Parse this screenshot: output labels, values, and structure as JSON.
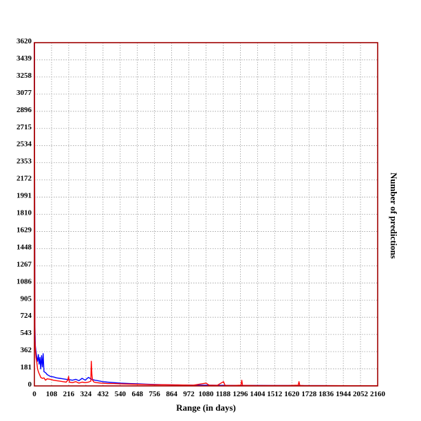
{
  "chart_data": {
    "type": "line",
    "title": "",
    "xlabel": "Range (in days)",
    "ylabel": "Number of predictions",
    "xlim": [
      0,
      2160
    ],
    "ylim": [
      0,
      3620
    ],
    "x_ticks": [
      0,
      108,
      216,
      324,
      432,
      540,
      648,
      756,
      864,
      972,
      1080,
      1188,
      1296,
      1404,
      1512,
      1620,
      1728,
      1836,
      1944,
      2052,
      2160
    ],
    "y_ticks": [
      0,
      181,
      362,
      543,
      724,
      905,
      1086,
      1267,
      1448,
      1629,
      1810,
      1991,
      2172,
      2353,
      2534,
      2715,
      2896,
      3077,
      3258,
      3439,
      3620
    ],
    "grid": true,
    "colors": {
      "frame": "#a00000",
      "grid": "#9a9a9a"
    },
    "series": [
      {
        "color": "#0000ff",
        "x": [
          0,
          3,
          6,
          10,
          15,
          20,
          25,
          30,
          35,
          40,
          45,
          50,
          55,
          60,
          70,
          80,
          90,
          100,
          120,
          140,
          160,
          180,
          200,
          220,
          240,
          260,
          280,
          300,
          320,
          340,
          360,
          380,
          400,
          430,
          460,
          500,
          540,
          600,
          650,
          700,
          760,
          820,
          900,
          1000,
          1100,
          1200,
          1300,
          1400,
          1500,
          1600,
          1700,
          1800,
          1900,
          2000,
          2100,
          2160
        ],
        "y": [
          3620,
          650,
          420,
          360,
          300,
          260,
          330,
          230,
          300,
          180,
          320,
          200,
          340,
          150,
          140,
          120,
          110,
          100,
          95,
          85,
          80,
          75,
          70,
          65,
          60,
          70,
          55,
          80,
          60,
          90,
          70,
          60,
          55,
          45,
          40,
          35,
          30,
          25,
          22,
          18,
          15,
          12,
          10,
          8,
          7,
          6,
          5,
          5,
          4,
          4,
          3,
          3,
          2,
          2,
          2,
          2
        ]
      },
      {
        "color": "#ff0000",
        "x": [
          0,
          3,
          6,
          10,
          15,
          20,
          25,
          30,
          35,
          40,
          50,
          60,
          70,
          80,
          100,
          120,
          140,
          160,
          180,
          200,
          210,
          215,
          220,
          240,
          260,
          280,
          300,
          320,
          340,
          355,
          358,
          362,
          366,
          375,
          390,
          420,
          460,
          500,
          560,
          620,
          700,
          760,
          820,
          900,
          1000,
          1080,
          1100,
          1150,
          1190,
          1200,
          1260,
          1300,
          1305,
          1310,
          1400,
          1500,
          1600,
          1660,
          1665,
          1670,
          1700,
          1800,
          1900,
          2000,
          2100,
          2160
        ],
        "y": [
          3620,
          500,
          380,
          300,
          250,
          180,
          150,
          130,
          110,
          90,
          80,
          85,
          60,
          75,
          70,
          60,
          55,
          50,
          45,
          40,
          60,
          100,
          40,
          35,
          45,
          30,
          40,
          35,
          40,
          50,
          260,
          120,
          60,
          40,
          35,
          30,
          25,
          25,
          20,
          18,
          15,
          12,
          12,
          10,
          8,
          30,
          8,
          6,
          45,
          6,
          5,
          8,
          60,
          6,
          4,
          4,
          4,
          8,
          45,
          5,
          3,
          3,
          3,
          2,
          2,
          2
        ]
      }
    ]
  }
}
